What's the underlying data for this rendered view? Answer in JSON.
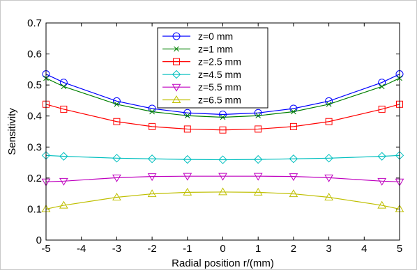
{
  "chart_data": {
    "type": "line",
    "xlabel": "Radial position r/(mm)",
    "ylabel": "Sensitivity",
    "xlim": [
      -5,
      5
    ],
    "ylim": [
      0,
      0.7
    ],
    "x_ticks": [
      -5,
      -4,
      -3,
      -2,
      -1,
      0,
      1,
      2,
      3,
      4,
      5
    ],
    "y_ticks": [
      0,
      0.1,
      0.2,
      0.3,
      0.4,
      0.5,
      0.6,
      0.7
    ],
    "x_tick_labels": [
      "-5",
      "-4",
      "-3",
      "-2",
      "-1",
      "0",
      "1",
      "2",
      "3",
      "4",
      "5"
    ],
    "y_tick_labels": [
      "0",
      "0.1",
      "0.2",
      "0.3",
      "0.4",
      "0.5",
      "0.6",
      "0.7"
    ],
    "grid": false,
    "legend_position": "top-center",
    "x": [
      -5,
      -4.5,
      -3,
      -2,
      -1,
      0,
      1,
      2,
      3,
      4.5,
      5
    ],
    "series": [
      {
        "name": "z=0 mm",
        "color": "#0000ff",
        "marker": "circle",
        "values": [
          0.535,
          0.508,
          0.448,
          0.424,
          0.41,
          0.405,
          0.41,
          0.424,
          0.448,
          0.508,
          0.535
        ]
      },
      {
        "name": "z=1 mm",
        "color": "#008000",
        "marker": "x",
        "values": [
          0.522,
          0.495,
          0.438,
          0.414,
          0.401,
          0.396,
          0.401,
          0.414,
          0.438,
          0.495,
          0.522
        ]
      },
      {
        "name": "z=2.5 mm",
        "color": "#ff0000",
        "marker": "square",
        "values": [
          0.438,
          0.422,
          0.382,
          0.366,
          0.358,
          0.355,
          0.358,
          0.366,
          0.382,
          0.422,
          0.438
        ]
      },
      {
        "name": "z=4.5 mm",
        "color": "#00bfbf",
        "marker": "diamond",
        "values": [
          0.273,
          0.27,
          0.264,
          0.262,
          0.26,
          0.259,
          0.26,
          0.262,
          0.264,
          0.27,
          0.273
        ]
      },
      {
        "name": "z=5.5 mm",
        "color": "#bf00bf",
        "marker": "triangle-down",
        "values": [
          0.188,
          0.19,
          0.201,
          0.205,
          0.206,
          0.206,
          0.206,
          0.205,
          0.201,
          0.19,
          0.188
        ]
      },
      {
        "name": "z=6.5 mm",
        "color": "#bfbf00",
        "marker": "triangle-up",
        "values": [
          0.1,
          0.112,
          0.138,
          0.149,
          0.154,
          0.155,
          0.154,
          0.149,
          0.138,
          0.112,
          0.1
        ]
      }
    ]
  }
}
